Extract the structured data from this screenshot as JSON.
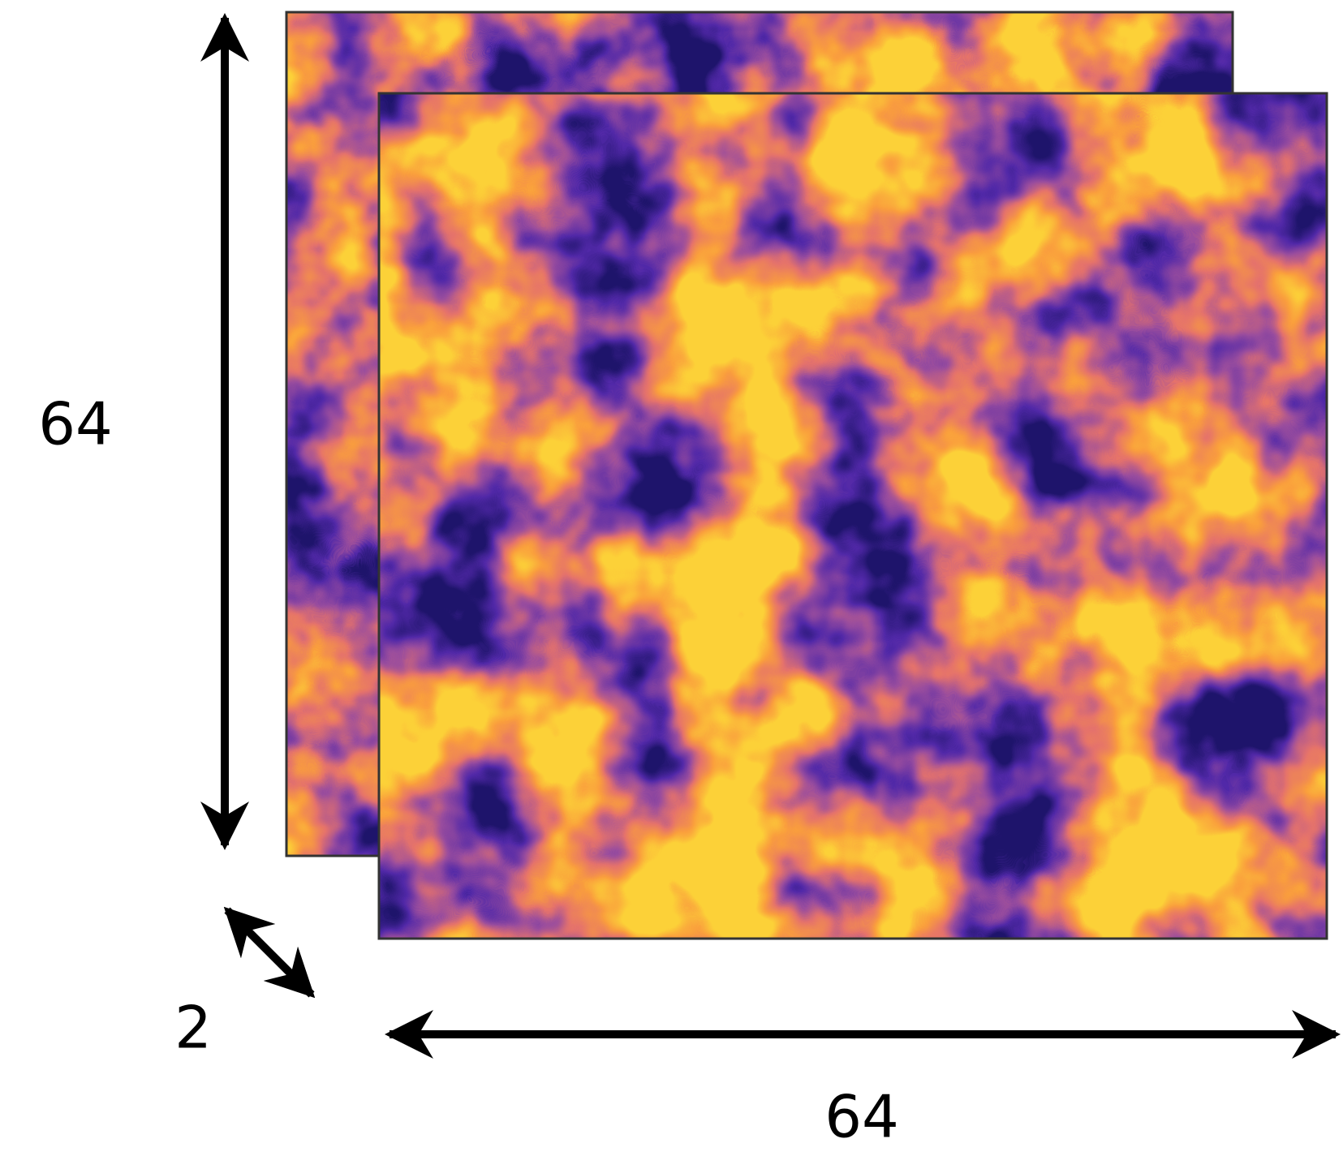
{
  "labels": {
    "height": "64",
    "channels": "2",
    "width": "64"
  }
}
